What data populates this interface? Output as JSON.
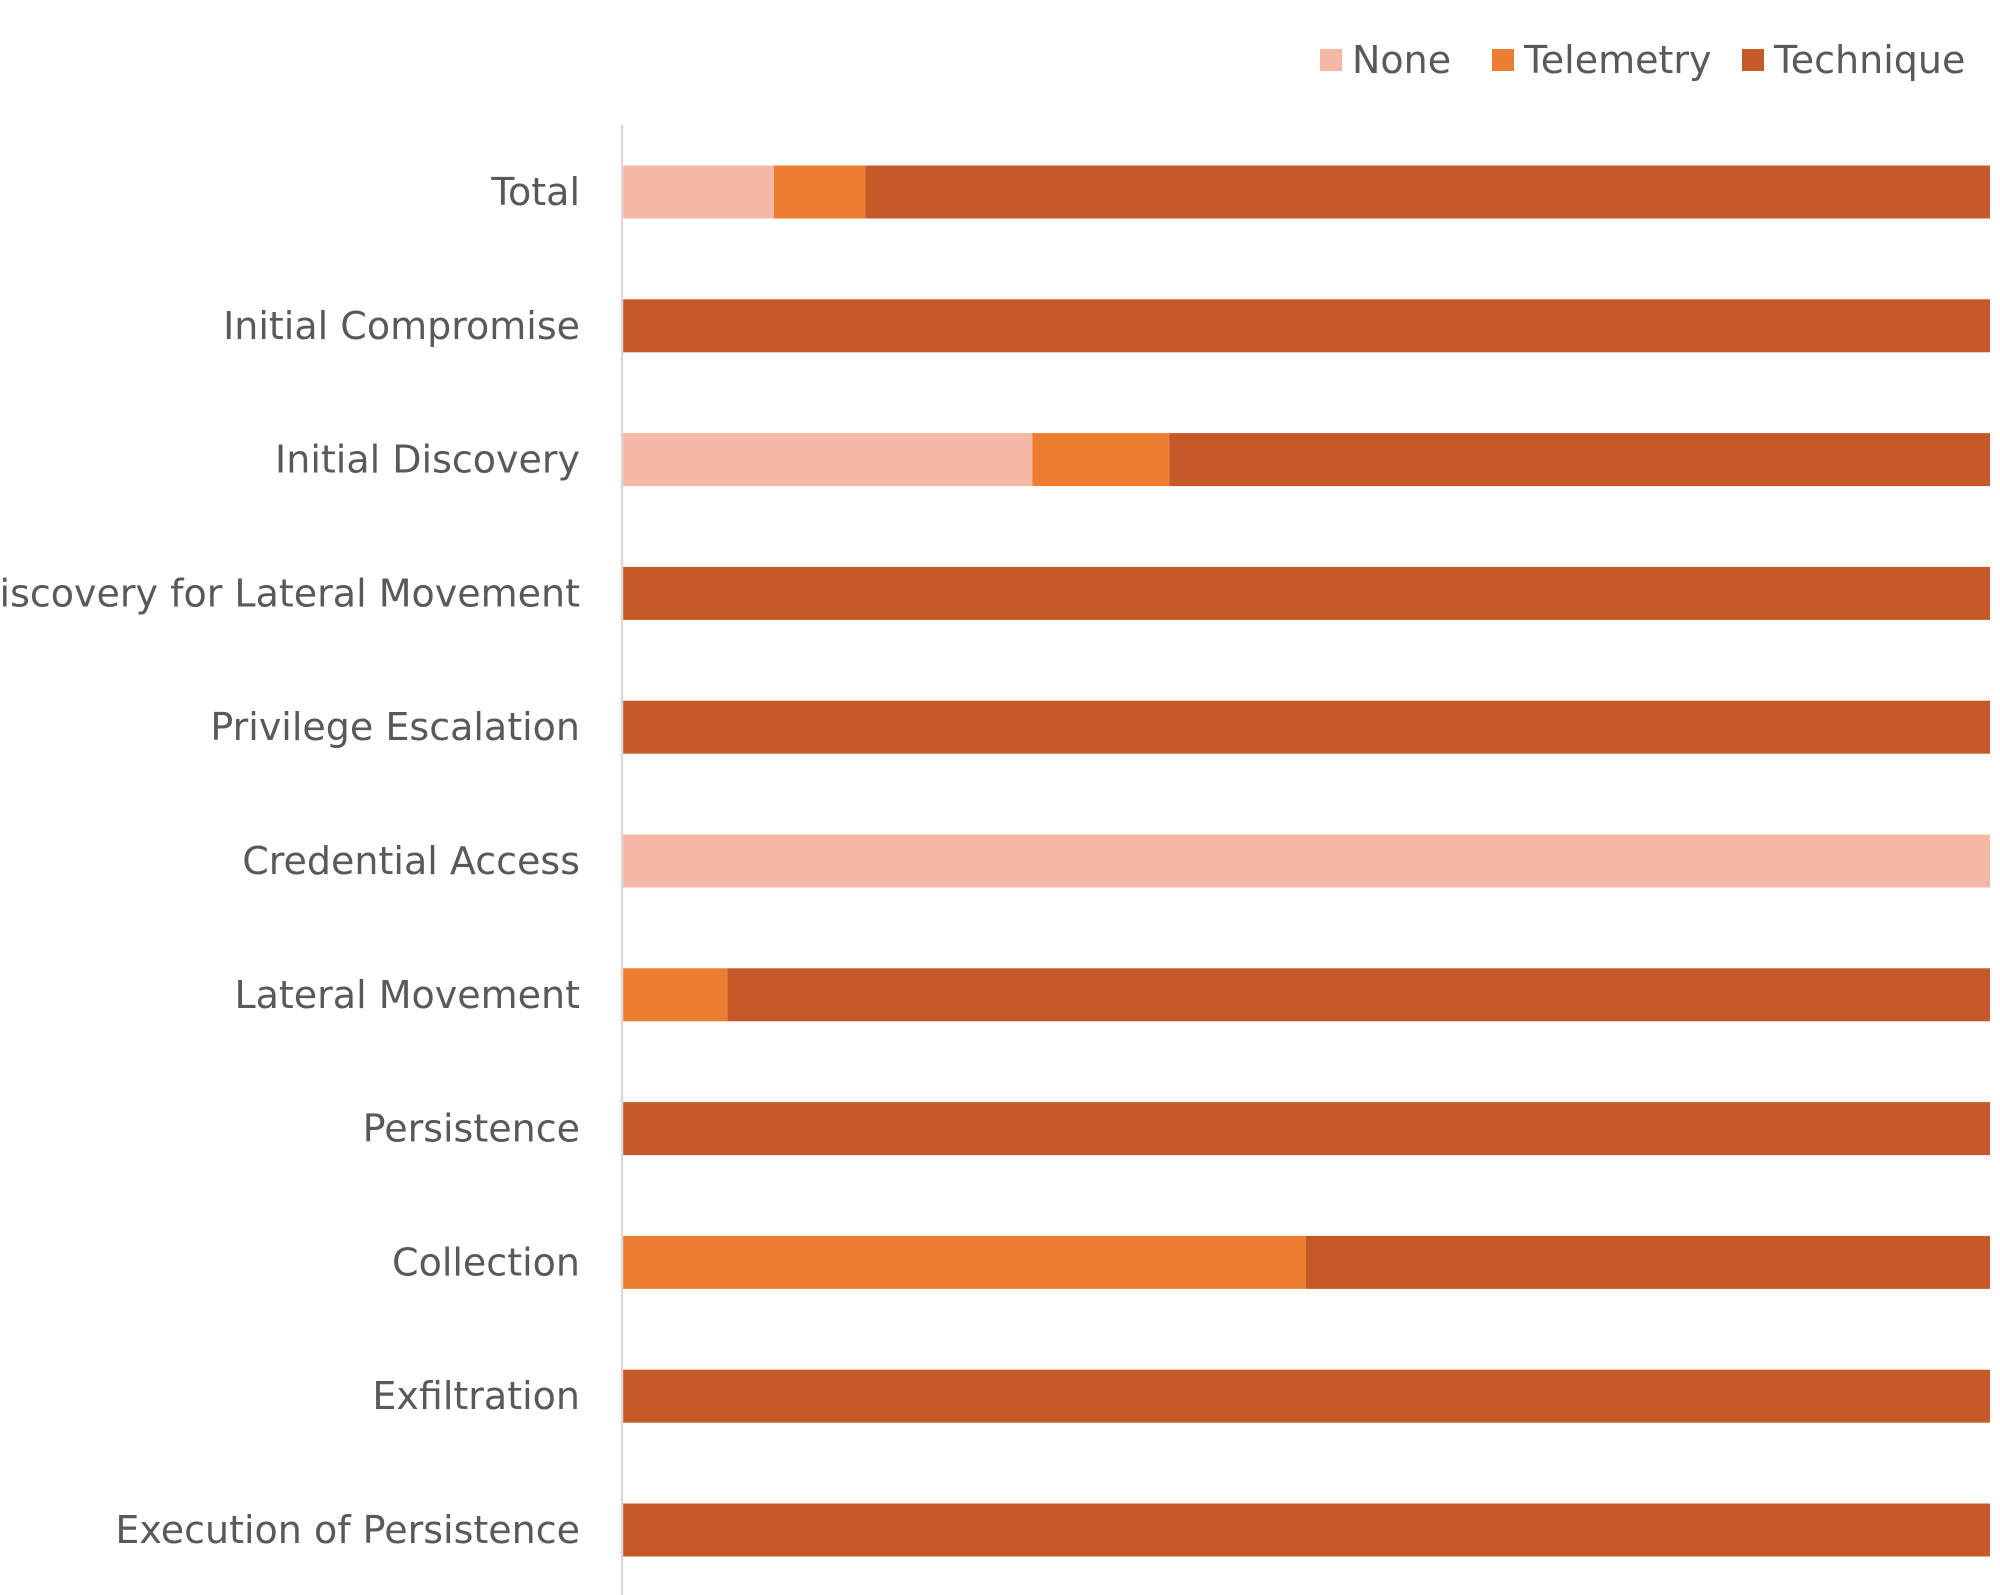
{
  "chart_data": {
    "type": "bar",
    "orientation": "horizontal",
    "stacking": "percent",
    "categories": [
      "Total",
      "Initial Compromise",
      "Initial Discovery",
      "Discovery for Lateral Movement",
      "Privilege Escalation",
      "Credential Access",
      "Lateral Movement",
      "Persistence",
      "Collection",
      "Exfiltration",
      "Execution of Persistence"
    ],
    "series": [
      {
        "name": "None",
        "color": "#F4B8A4",
        "values": [
          11.1,
          0,
          30,
          0,
          0,
          100,
          0,
          0,
          0,
          0,
          0
        ]
      },
      {
        "name": "Telemetry",
        "color": "#ED7D31",
        "values": [
          6.7,
          0,
          10,
          0,
          0,
          0,
          7.7,
          0,
          50,
          0,
          0
        ]
      },
      {
        "name": "Technique",
        "color": "#C55A28",
        "values": [
          82.2,
          100,
          60,
          100,
          100,
          0,
          92.3,
          100,
          50,
          100,
          100
        ]
      }
    ],
    "xlim": [
      0,
      100
    ],
    "grid": false,
    "legend_position": "top-right",
    "axis_line_color": "#D9D9D9"
  }
}
